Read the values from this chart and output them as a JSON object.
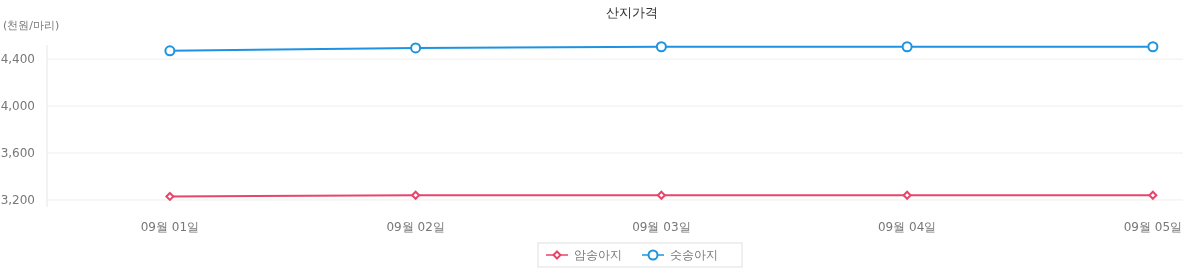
{
  "chart_data": {
    "type": "line",
    "title": "산지가격",
    "ylabel": "(천원/마리)",
    "categories": [
      "09월 01일",
      "09월 02일",
      "09월 03일",
      "09월 04일",
      "09월 05일"
    ],
    "series": [
      {
        "name": "암송아지",
        "color": "#e8456b",
        "marker": "diamond",
        "values": [
          3230,
          3240,
          3240,
          3240,
          3240
        ]
      },
      {
        "name": "숫송아지",
        "color": "#1e94e0",
        "marker": "circle",
        "values": [
          4470,
          4495,
          4505,
          4505,
          4505
        ]
      }
    ],
    "ylim": [
      3140,
      4520
    ],
    "yticks": [
      {
        "value": 3200,
        "label": "3,200"
      },
      {
        "value": 3600,
        "label": "3,600"
      },
      {
        "value": 4000,
        "label": "4,000"
      },
      {
        "value": 4400,
        "label": "4,400"
      }
    ],
    "grid": "y",
    "legend": "bottom"
  }
}
